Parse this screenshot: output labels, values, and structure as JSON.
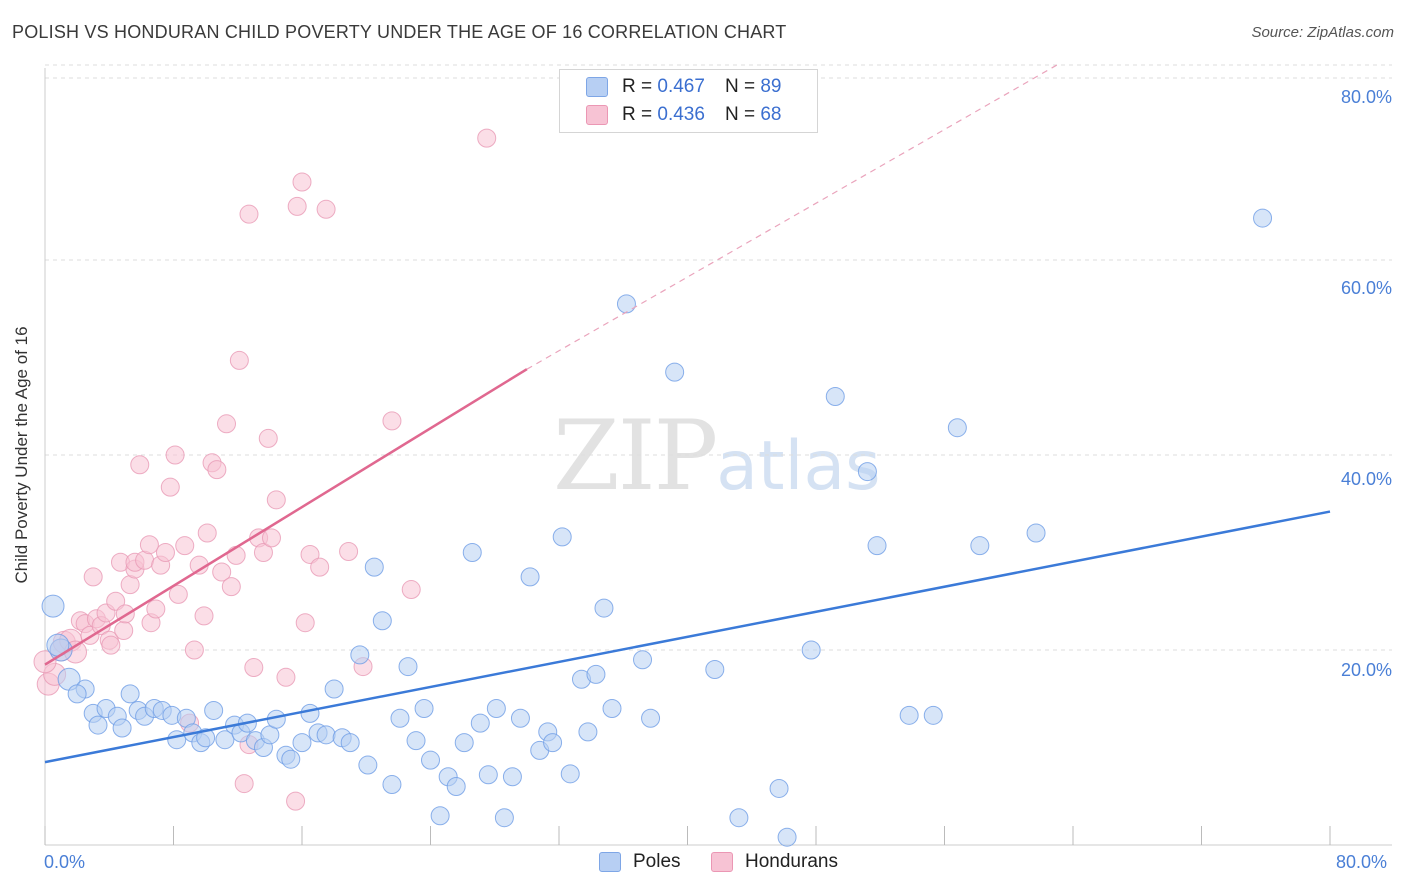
{
  "title": "POLISH VS HONDURAN CHILD POVERTY UNDER THE AGE OF 16 CORRELATION CHART",
  "source": "Source: ZipAtlas.com",
  "watermark": {
    "zip": "ZIP",
    "atlas": "atlas"
  },
  "colors": {
    "poles": "#3b7ad8",
    "poles_fill": "#b7cff3",
    "hondurans": "#e06890",
    "hondurans_fill": "#f7c3d4",
    "axis_text": "#4a7fd6",
    "grid": "#dddddd"
  },
  "legend": {
    "poles": {
      "r_label": "R = ",
      "r": "0.467",
      "n_label": "N = ",
      "n": "89"
    },
    "hondurans": {
      "r_label": "R = ",
      "r": "0.436",
      "n_label": "N = ",
      "n": "68"
    }
  },
  "chart_data": {
    "type": "scatter",
    "title": "POLISH VS HONDURAN CHILD POVERTY UNDER THE AGE OF 16 CORRELATION CHART",
    "xlabel": "",
    "ylabel": "Child Poverty Under the Age of 16",
    "xlim": [
      0,
      80
    ],
    "ylim": [
      0,
      80
    ],
    "x_tick_labels": [
      "0.0%",
      "80.0%"
    ],
    "y_tick_labels": [
      "20.0%",
      "40.0%",
      "60.0%",
      "80.0%"
    ],
    "y_ticks": [
      20,
      40,
      60,
      80
    ],
    "grid": true,
    "legend_position": "top-center",
    "series": [
      {
        "name": "Poles",
        "r": 0.467,
        "n": 89,
        "trend": {
          "x0": 0,
          "y0": 8.5,
          "x1": 80,
          "y1": 34.2
        },
        "points": [
          [
            0.5,
            24.5
          ],
          [
            1.5,
            17
          ],
          [
            2.5,
            16
          ],
          [
            2,
            15.5
          ],
          [
            1,
            20
          ],
          [
            0.8,
            20.5
          ],
          [
            3,
            13.5
          ],
          [
            3.3,
            12.3
          ],
          [
            3.8,
            14
          ],
          [
            4.5,
            13.2
          ],
          [
            4.8,
            12
          ],
          [
            5.3,
            15.5
          ],
          [
            5.8,
            13.8
          ],
          [
            6.2,
            13.2
          ],
          [
            6.8,
            14
          ],
          [
            7.3,
            13.8
          ],
          [
            7.9,
            13.3
          ],
          [
            8.2,
            10.8
          ],
          [
            8.8,
            13
          ],
          [
            9.2,
            11.5
          ],
          [
            9.7,
            10.5
          ],
          [
            10,
            11
          ],
          [
            10.5,
            13.8
          ],
          [
            11.2,
            10.8
          ],
          [
            11.8,
            12.3
          ],
          [
            12.2,
            11.5
          ],
          [
            12.6,
            12.5
          ],
          [
            13.1,
            10.7
          ],
          [
            13.6,
            10
          ],
          [
            14,
            11.3
          ],
          [
            14.4,
            12.9
          ],
          [
            15,
            9.2
          ],
          [
            15.3,
            8.8
          ],
          [
            16,
            10.5
          ],
          [
            16.5,
            13.5
          ],
          [
            17,
            11.5
          ],
          [
            17.5,
            11.3
          ],
          [
            18,
            16
          ],
          [
            18.5,
            11
          ],
          [
            19,
            10.5
          ],
          [
            19.6,
            19.5
          ],
          [
            20.1,
            8.2
          ],
          [
            20.5,
            28.5
          ],
          [
            21,
            23
          ],
          [
            21.6,
            6.2
          ],
          [
            22.1,
            13
          ],
          [
            22.6,
            18.3
          ],
          [
            23.1,
            10.7
          ],
          [
            23.6,
            14
          ],
          [
            24,
            8.7
          ],
          [
            24.6,
            3
          ],
          [
            25.1,
            7
          ],
          [
            25.6,
            6
          ],
          [
            26.1,
            10.5
          ],
          [
            26.6,
            30
          ],
          [
            27.1,
            12.5
          ],
          [
            27.6,
            7.2
          ],
          [
            28.1,
            14
          ],
          [
            28.6,
            2.8
          ],
          [
            29.1,
            7
          ],
          [
            29.6,
            13
          ],
          [
            30.2,
            27.5
          ],
          [
            30.8,
            9.7
          ],
          [
            31.3,
            11.6
          ],
          [
            31.6,
            10.5
          ],
          [
            32.2,
            31.6
          ],
          [
            32.7,
            7.3
          ],
          [
            33.4,
            17
          ],
          [
            33.8,
            11.6
          ],
          [
            34.3,
            17.5
          ],
          [
            34.8,
            24.3
          ],
          [
            35.3,
            14
          ],
          [
            36.2,
            55.5
          ],
          [
            37.2,
            19
          ],
          [
            37.7,
            13
          ],
          [
            39.2,
            48.5
          ],
          [
            41.7,
            18
          ],
          [
            43.2,
            2.8
          ],
          [
            45.7,
            5.8
          ],
          [
            46.2,
            0.8
          ],
          [
            47.7,
            20
          ],
          [
            49.2,
            46
          ],
          [
            51.2,
            38.3
          ],
          [
            51.8,
            30.7
          ],
          [
            53.8,
            13.3
          ],
          [
            55.3,
            13.3
          ],
          [
            56.8,
            42.8
          ],
          [
            58.2,
            30.7
          ],
          [
            61.7,
            32
          ]
        ],
        "extra_points": [
          [
            75.8,
            64.3
          ]
        ]
      },
      {
        "name": "Hondurans",
        "r": 0.436,
        "n": 68,
        "trend": {
          "x0": 0,
          "y0": 18.5,
          "x1": 30,
          "y1": 48.8,
          "dash_to": [
            63,
            80
          ]
        },
        "points": [
          [
            0.2,
            16.5
          ],
          [
            0.6,
            17.5
          ],
          [
            1,
            20
          ],
          [
            1.2,
            20.8
          ],
          [
            1.6,
            21
          ],
          [
            1.9,
            19.8
          ],
          [
            2.2,
            23
          ],
          [
            2.5,
            22.7
          ],
          [
            2.8,
            21.5
          ],
          [
            3,
            27.5
          ],
          [
            3.2,
            23.2
          ],
          [
            3.5,
            22.5
          ],
          [
            3.8,
            23.8
          ],
          [
            4,
            21
          ],
          [
            4.1,
            20.5
          ],
          [
            4.4,
            25
          ],
          [
            4.7,
            29
          ],
          [
            4.9,
            22
          ],
          [
            5,
            23.7
          ],
          [
            5.3,
            26.7
          ],
          [
            5.6,
            28.3
          ],
          [
            5.6,
            29
          ],
          [
            5.9,
            39
          ],
          [
            6.2,
            29.2
          ],
          [
            6.5,
            30.8
          ],
          [
            6.6,
            22.8
          ],
          [
            6.9,
            24.2
          ],
          [
            7.2,
            28.7
          ],
          [
            7.5,
            30
          ],
          [
            7.8,
            36.7
          ],
          [
            8.1,
            40
          ],
          [
            8.3,
            25.7
          ],
          [
            8.7,
            30.7
          ],
          [
            9,
            12.5
          ],
          [
            9.3,
            20
          ],
          [
            9.6,
            28.7
          ],
          [
            9.9,
            23.5
          ],
          [
            10.1,
            32
          ],
          [
            10.4,
            39.2
          ],
          [
            10.7,
            38.5
          ],
          [
            11,
            28
          ],
          [
            11.3,
            43.2
          ],
          [
            11.6,
            26.5
          ],
          [
            11.9,
            29.7
          ],
          [
            12.1,
            49.7
          ],
          [
            12.4,
            6.3
          ],
          [
            12.7,
            10.3
          ],
          [
            13,
            18.2
          ],
          [
            13.3,
            31.5
          ],
          [
            13.6,
            30
          ],
          [
            13.9,
            41.7
          ],
          [
            14.1,
            31.5
          ],
          [
            14.4,
            35.4
          ],
          [
            15,
            17.2
          ],
          [
            15.6,
            4.5
          ],
          [
            16.2,
            22.8
          ],
          [
            16.5,
            29.8
          ],
          [
            17.1,
            28.5
          ],
          [
            17.5,
            65.2
          ],
          [
            18.9,
            30.1
          ],
          [
            19.8,
            18.3
          ],
          [
            21.6,
            43.5
          ],
          [
            22.8,
            26.2
          ],
          [
            27.5,
            72.5
          ],
          [
            12.7,
            64.7
          ],
          [
            15.7,
            65.5
          ],
          [
            16,
            68
          ],
          [
            0,
            18.8
          ]
        ]
      }
    ]
  }
}
